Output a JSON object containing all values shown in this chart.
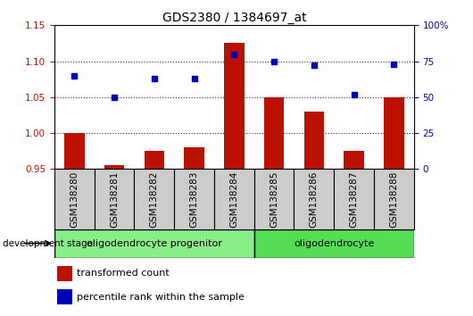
{
  "title": "GDS2380 / 1384697_at",
  "samples": [
    "GSM138280",
    "GSM138281",
    "GSM138282",
    "GSM138283",
    "GSM138284",
    "GSM138285",
    "GSM138286",
    "GSM138287",
    "GSM138288"
  ],
  "transformed_count": [
    1.0,
    0.955,
    0.975,
    0.98,
    1.125,
    1.05,
    1.03,
    0.975,
    1.05
  ],
  "percentile_rank": [
    65,
    50,
    63,
    63,
    80,
    75,
    72,
    52,
    73
  ],
  "ylim_left": [
    0.95,
    1.15
  ],
  "ylim_right": [
    0,
    100
  ],
  "yticks_left": [
    0.95,
    1.0,
    1.05,
    1.1,
    1.15
  ],
  "yticks_right": [
    0,
    25,
    50,
    75,
    100
  ],
  "ytick_labels_right": [
    "0",
    "25",
    "50",
    "75",
    "100%"
  ],
  "bar_color": "#bb1100",
  "scatter_color": "#0000bb",
  "bar_width": 0.5,
  "baseline": 0.95,
  "groups": [
    {
      "label": "oligodendrocyte progenitor",
      "start": 0,
      "end": 4,
      "color": "#88ee88"
    },
    {
      "label": "oligodendrocyte",
      "start": 5,
      "end": 8,
      "color": "#55dd55"
    }
  ],
  "group_label_prefix": "development stage",
  "legend_items": [
    {
      "label": "transformed count",
      "color": "#bb1100"
    },
    {
      "label": "percentile rank within the sample",
      "color": "#0000bb"
    }
  ],
  "title_fontsize": 10,
  "tick_fontsize": 7.5,
  "label_fontsize": 8,
  "gridline_color": "#333333",
  "spine_color": "#000000",
  "xticklabel_bg": "#cccccc"
}
